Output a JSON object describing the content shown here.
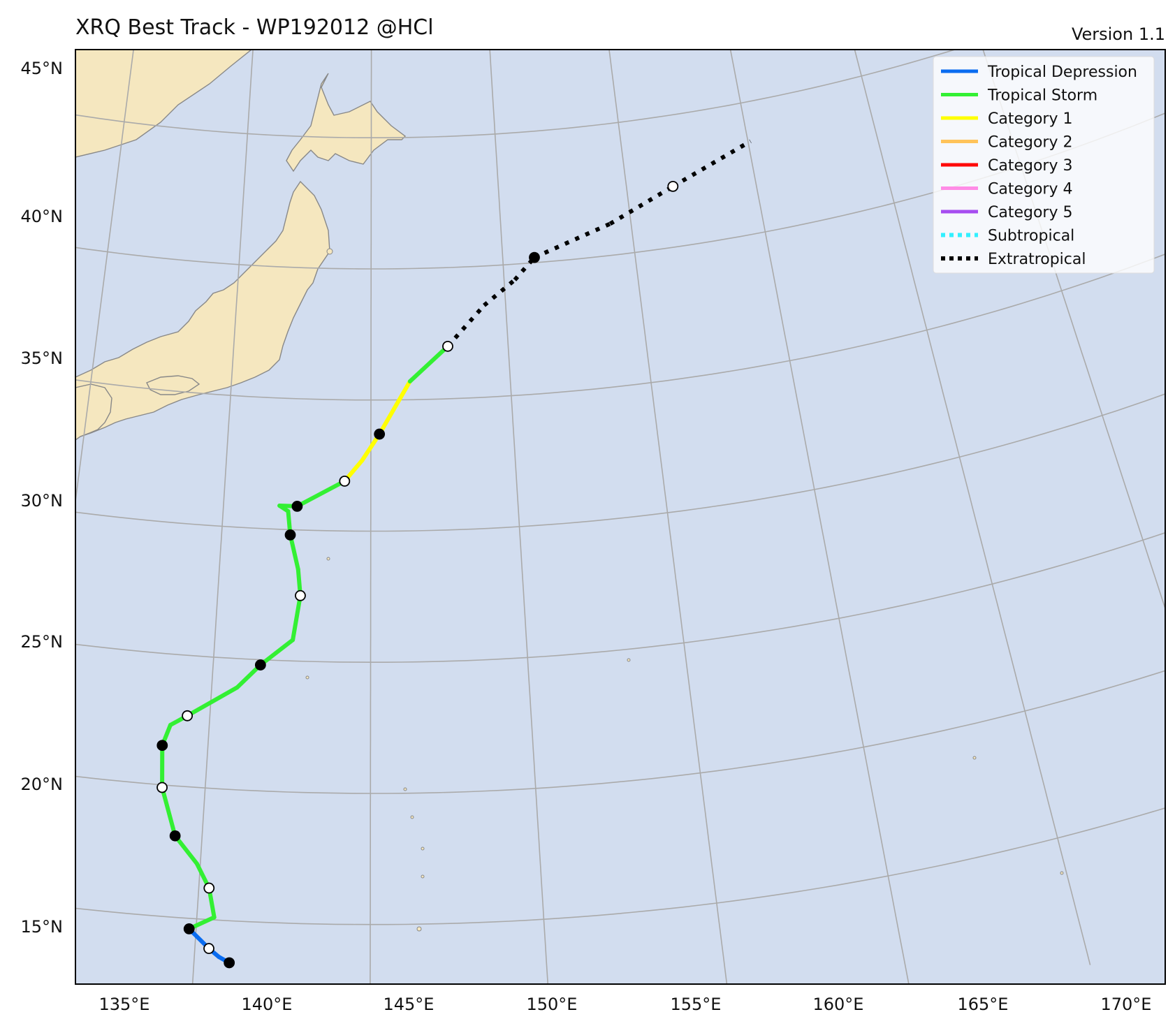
{
  "header": {
    "title": "XRQ Best Track - WP192012  @HCl",
    "version": "Version 1.1"
  },
  "axes": {
    "lon_labels": [
      "135°E",
      "140°E",
      "145°E",
      "150°E",
      "155°E",
      "160°E",
      "165°E",
      "170°E"
    ],
    "lat_labels": [
      "45°N",
      "40°N",
      "35°N",
      "30°N",
      "25°N",
      "20°N",
      "15°N"
    ]
  },
  "legend": {
    "items": [
      {
        "label": "Tropical Depression",
        "color": "#0a6cf0",
        "style": "solid"
      },
      {
        "label": "Tropical Storm",
        "color": "#33f033",
        "style": "solid"
      },
      {
        "label": "Category 1",
        "color": "#ffff00",
        "style": "solid"
      },
      {
        "label": "Category 2",
        "color": "#ffc35a",
        "style": "solid"
      },
      {
        "label": "Category 3",
        "color": "#ff0a0a",
        "style": "solid"
      },
      {
        "label": "Category 4",
        "color": "#ff8ce6",
        "style": "solid"
      },
      {
        "label": "Category 5",
        "color": "#a64df0",
        "style": "solid"
      },
      {
        "label": "Subtropical",
        "color": "#33f0ff",
        "style": "dotted"
      },
      {
        "label": "Extratropical",
        "color": "#000000",
        "style": "dotted"
      }
    ]
  },
  "colors": {
    "ocean": "#d2ddef",
    "land": "#f5e7bf",
    "coast": "#888888",
    "grid": "#aaaaaa"
  },
  "chart_data": {
    "type": "map-track",
    "track": [
      {
        "lon": 141.0,
        "lat": 13.4,
        "stage": "TD",
        "marker": "filled"
      },
      {
        "lon": 140.7,
        "lat": 13.6,
        "stage": "TD",
        "marker": "none"
      },
      {
        "lon": 140.4,
        "lat": 13.9,
        "stage": "TD",
        "marker": "open"
      },
      {
        "lon": 139.8,
        "lat": 14.6,
        "stage": "TD",
        "marker": "filled"
      },
      {
        "lon": 140.5,
        "lat": 15.1,
        "stage": "TS",
        "marker": "none"
      },
      {
        "lon": 140.3,
        "lat": 16.2,
        "stage": "TS",
        "marker": "open"
      },
      {
        "lon": 139.9,
        "lat": 17.1,
        "stage": "TS",
        "marker": "none"
      },
      {
        "lon": 139.2,
        "lat": 18.1,
        "stage": "TS",
        "marker": "filled"
      },
      {
        "lon": 138.7,
        "lat": 19.9,
        "stage": "TS",
        "marker": "open"
      },
      {
        "lon": 138.6,
        "lat": 21.5,
        "stage": "TS",
        "marker": "filled"
      },
      {
        "lon": 138.8,
        "lat": 22.3,
        "stage": "TS",
        "marker": "none"
      },
      {
        "lon": 139.3,
        "lat": 22.7,
        "stage": "TS",
        "marker": "open"
      },
      {
        "lon": 140.8,
        "lat": 23.9,
        "stage": "TS",
        "marker": "none"
      },
      {
        "lon": 141.5,
        "lat": 24.8,
        "stage": "TS",
        "marker": "filled"
      },
      {
        "lon": 142.5,
        "lat": 25.8,
        "stage": "TS",
        "marker": "none"
      },
      {
        "lon": 142.7,
        "lat": 27.5,
        "stage": "TS",
        "marker": "open"
      },
      {
        "lon": 142.6,
        "lat": 28.5,
        "stage": "TS",
        "marker": "none"
      },
      {
        "lon": 142.3,
        "lat": 29.8,
        "stage": "TS",
        "marker": "filled"
      },
      {
        "lon": 142.2,
        "lat": 30.7,
        "stage": "TS",
        "marker": "none"
      },
      {
        "lon": 141.9,
        "lat": 30.9,
        "stage": "TS",
        "marker": "none"
      },
      {
        "lon": 142.5,
        "lat": 30.9,
        "stage": "TS",
        "marker": "filled"
      },
      {
        "lon": 144.1,
        "lat": 31.9,
        "stage": "TS",
        "marker": "open"
      },
      {
        "lon": 144.7,
        "lat": 32.7,
        "stage": "C1",
        "marker": "none"
      },
      {
        "lon": 145.3,
        "lat": 33.7,
        "stage": "C1",
        "marker": "filled"
      },
      {
        "lon": 146.4,
        "lat": 35.7,
        "stage": "C1",
        "marker": "none"
      },
      {
        "lon": 147.8,
        "lat": 37.0,
        "stage": "TS",
        "marker": "open"
      },
      {
        "lon": 149.2,
        "lat": 38.5,
        "stage": "EX",
        "marker": "none"
      },
      {
        "lon": 150.4,
        "lat": 39.4,
        "stage": "EX",
        "marker": "none"
      },
      {
        "lon": 151.2,
        "lat": 40.2,
        "stage": "EX",
        "marker": "filled"
      },
      {
        "lon": 154.2,
        "lat": 41.2,
        "stage": "EX",
        "marker": "none"
      },
      {
        "lon": 156.8,
        "lat": 42.3,
        "stage": "EX",
        "marker": "open"
      },
      {
        "lon": 160.1,
        "lat": 43.5,
        "stage": "EX",
        "marker": "none"
      }
    ],
    "stage_colors": {
      "TD": "#0a6cf0",
      "TS": "#33f033",
      "C1": "#ffff00",
      "EX": "#000000"
    },
    "extent": {
      "lon": [
        133.5,
        172
      ],
      "lat": [
        13,
        46.5
      ]
    },
    "grid_lons": [
      135,
      140,
      145,
      150,
      155,
      160,
      165,
      170
    ],
    "grid_lats": [
      15,
      20,
      25,
      30,
      35,
      40,
      45
    ],
    "legend_position": "top-right"
  }
}
